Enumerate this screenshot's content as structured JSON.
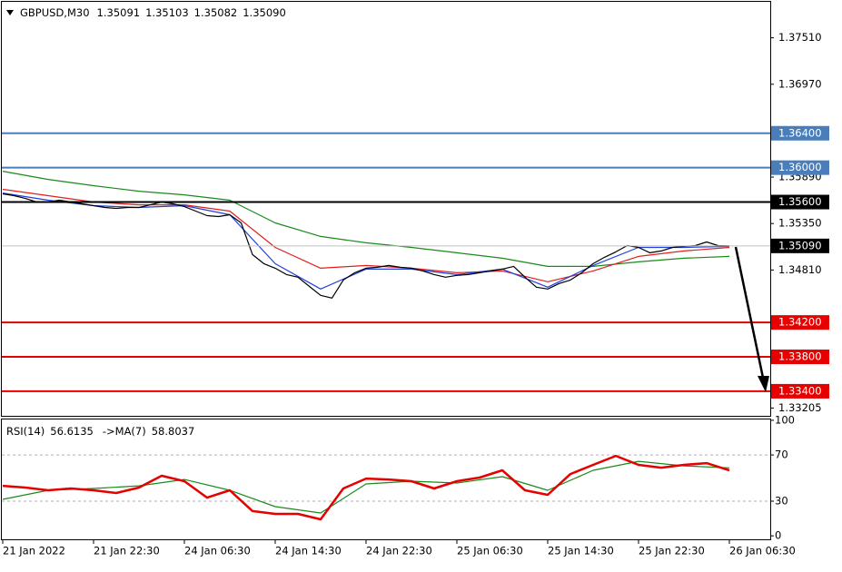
{
  "chart_data": [
    {
      "type": "line",
      "title": "GBPUSD,M30",
      "quote": [
        "1.35091",
        "1.35103",
        "1.35082",
        "1.35090"
      ],
      "xlim": [
        0,
        67.6
      ],
      "ylim": [
        1.33114,
        1.37939
      ],
      "yticks": [
        {
          "value": 1.3751,
          "label": "1.37510"
        },
        {
          "value": 1.3697,
          "label": "1.36970"
        },
        {
          "value": 1.3589,
          "label": "1.35890"
        },
        {
          "value": 1.3535,
          "label": "1.35350"
        },
        {
          "value": 1.3481,
          "label": "1.34810"
        },
        {
          "value": 1.33205,
          "label": "1.33205"
        }
      ],
      "levels": [
        {
          "value": 1.364,
          "label": "1.36400",
          "color": "#4a7ebb"
        },
        {
          "value": 1.36,
          "label": "1.36000",
          "color": "#4a7ebb"
        },
        {
          "value": 1.356,
          "label": "1.35600",
          "color": "#000000"
        },
        {
          "value": 1.3509,
          "label": "1.35090",
          "color": "#c0c0c0",
          "label_color": "#000000"
        },
        {
          "value": 1.342,
          "label": "1.34200",
          "color": "#e60000"
        },
        {
          "value": 1.338,
          "label": "1.33800",
          "color": "#e60000"
        },
        {
          "value": 1.334,
          "label": "1.33400",
          "color": "#e60000"
        }
      ],
      "series": [
        {
          "color": "#1a8a1a",
          "x": [
            0,
            4,
            8,
            12,
            16,
            20,
            24,
            28,
            32,
            36,
            40,
            44,
            48,
            52,
            56,
            60,
            64
          ],
          "values": [
            1.35958,
            1.35863,
            1.3579,
            1.35726,
            1.35684,
            1.35621,
            1.35358,
            1.352,
            1.35126,
            1.35073,
            1.3501,
            1.34947,
            1.34852,
            1.34852,
            1.34905,
            1.34947,
            1.34968
          ]
        },
        {
          "color": "#e02020",
          "x": [
            0,
            4,
            8,
            12,
            16,
            20,
            24,
            28,
            32,
            36,
            40,
            44,
            48,
            52,
            56,
            60,
            64
          ],
          "values": [
            1.35748,
            1.35674,
            1.356,
            1.35568,
            1.35568,
            1.35495,
            1.35073,
            1.34831,
            1.34862,
            1.34831,
            1.34778,
            1.34799,
            1.34673,
            1.34799,
            1.34968,
            1.35031,
            1.35073
          ]
        },
        {
          "color": "#2040e0",
          "x": [
            0,
            4,
            8,
            12,
            16,
            20,
            24,
            28,
            32,
            36,
            40,
            44,
            48,
            52,
            56,
            60,
            64
          ],
          "values": [
            1.35705,
            1.35621,
            1.35558,
            1.35537,
            1.35558,
            1.35453,
            1.34884,
            1.34589,
            1.3482,
            1.3482,
            1.34757,
            1.3482,
            1.3461,
            1.34862,
            1.35073,
            1.35073,
            1.35084
          ]
        },
        {
          "color": "#000000",
          "values": [
            1.35695,
            1.35674,
            1.35642,
            1.356,
            1.356,
            1.35621,
            1.356,
            1.35579,
            1.35558,
            1.35537,
            1.35526,
            1.35537,
            1.35537,
            1.35568,
            1.356,
            1.35579,
            1.35547,
            1.35495,
            1.35442,
            1.35431,
            1.35453,
            1.35358,
            1.34989,
            1.34884,
            1.34831,
            1.34757,
            1.34726,
            1.3462,
            1.34515,
            1.34483,
            1.34694,
            1.34778,
            1.34831,
            1.34841,
            1.34862,
            1.34841,
            1.34831,
            1.34799,
            1.34757,
            1.34726,
            1.34747,
            1.34757,
            1.34778,
            1.34799,
            1.3482,
            1.34852,
            1.34726,
            1.3461,
            1.34589,
            1.34652,
            1.34694,
            1.34778,
            1.34884,
            1.34957,
            1.35021,
            1.35094,
            1.35073,
            1.3501,
            1.35031,
            1.35073,
            1.35084,
            1.35094,
            1.35136,
            1.35094,
            1.3509
          ]
        }
      ]
    },
    {
      "type": "line",
      "header": [
        "RSI(14)",
        "56.6135",
        "->MA(7)",
        "58.8037"
      ],
      "xlim": [
        0,
        67.6
      ],
      "ylim": [
        -3,
        101.5
      ],
      "yticks": [
        100,
        70,
        30,
        0
      ],
      "dashed_levels": [
        70,
        30
      ],
      "xticks": [
        {
          "value": 0,
          "label": "21 Jan 2022"
        },
        {
          "value": 8,
          "label": "21 Jan 22:30"
        },
        {
          "value": 16,
          "label": "24 Jan 06:30"
        },
        {
          "value": 24,
          "label": "24 Jan 14:30"
        },
        {
          "value": 32,
          "label": "24 Jan 22:30"
        },
        {
          "value": 40,
          "label": "25 Jan 06:30"
        },
        {
          "value": 48,
          "label": "25 Jan 14:30"
        },
        {
          "value": 56,
          "label": "25 Jan 22:30"
        },
        {
          "value": 64,
          "label": "26 Jan 06:30"
        }
      ],
      "series": [
        {
          "color": "#1a8a1a",
          "x": [
            0,
            4,
            8,
            12,
            16,
            20,
            24,
            28,
            32,
            36,
            40,
            44,
            48,
            52,
            56,
            60,
            64
          ],
          "values": [
            31.6,
            39.4,
            41.0,
            43.3,
            48.8,
            39.4,
            25.3,
            19.8,
            44.9,
            47.3,
            45.7,
            51.2,
            39.4,
            56.7,
            64.5,
            60.6,
            58.8
          ]
        },
        {
          "color": "#e60000",
          "x": [
            0,
            2,
            4,
            6,
            8,
            10,
            12,
            14,
            16,
            18,
            20,
            22,
            24,
            26,
            28,
            30,
            32,
            34,
            36,
            38,
            40,
            42,
            44,
            46,
            48,
            50,
            52,
            54,
            56,
            58,
            60,
            62,
            64
          ],
          "values": [
            43.3,
            41.8,
            39.4,
            41.0,
            39.4,
            37.1,
            41.8,
            52.0,
            47.3,
            33.1,
            39.4,
            21.4,
            19.0,
            19.0,
            14.3,
            41.0,
            49.6,
            48.8,
            47.3,
            41.0,
            47.3,
            50.4,
            56.7,
            39.4,
            35.5,
            53.5,
            61.4,
            69.2,
            61.4,
            59.0,
            61.4,
            62.9,
            56.6
          ]
        }
      ]
    }
  ]
}
